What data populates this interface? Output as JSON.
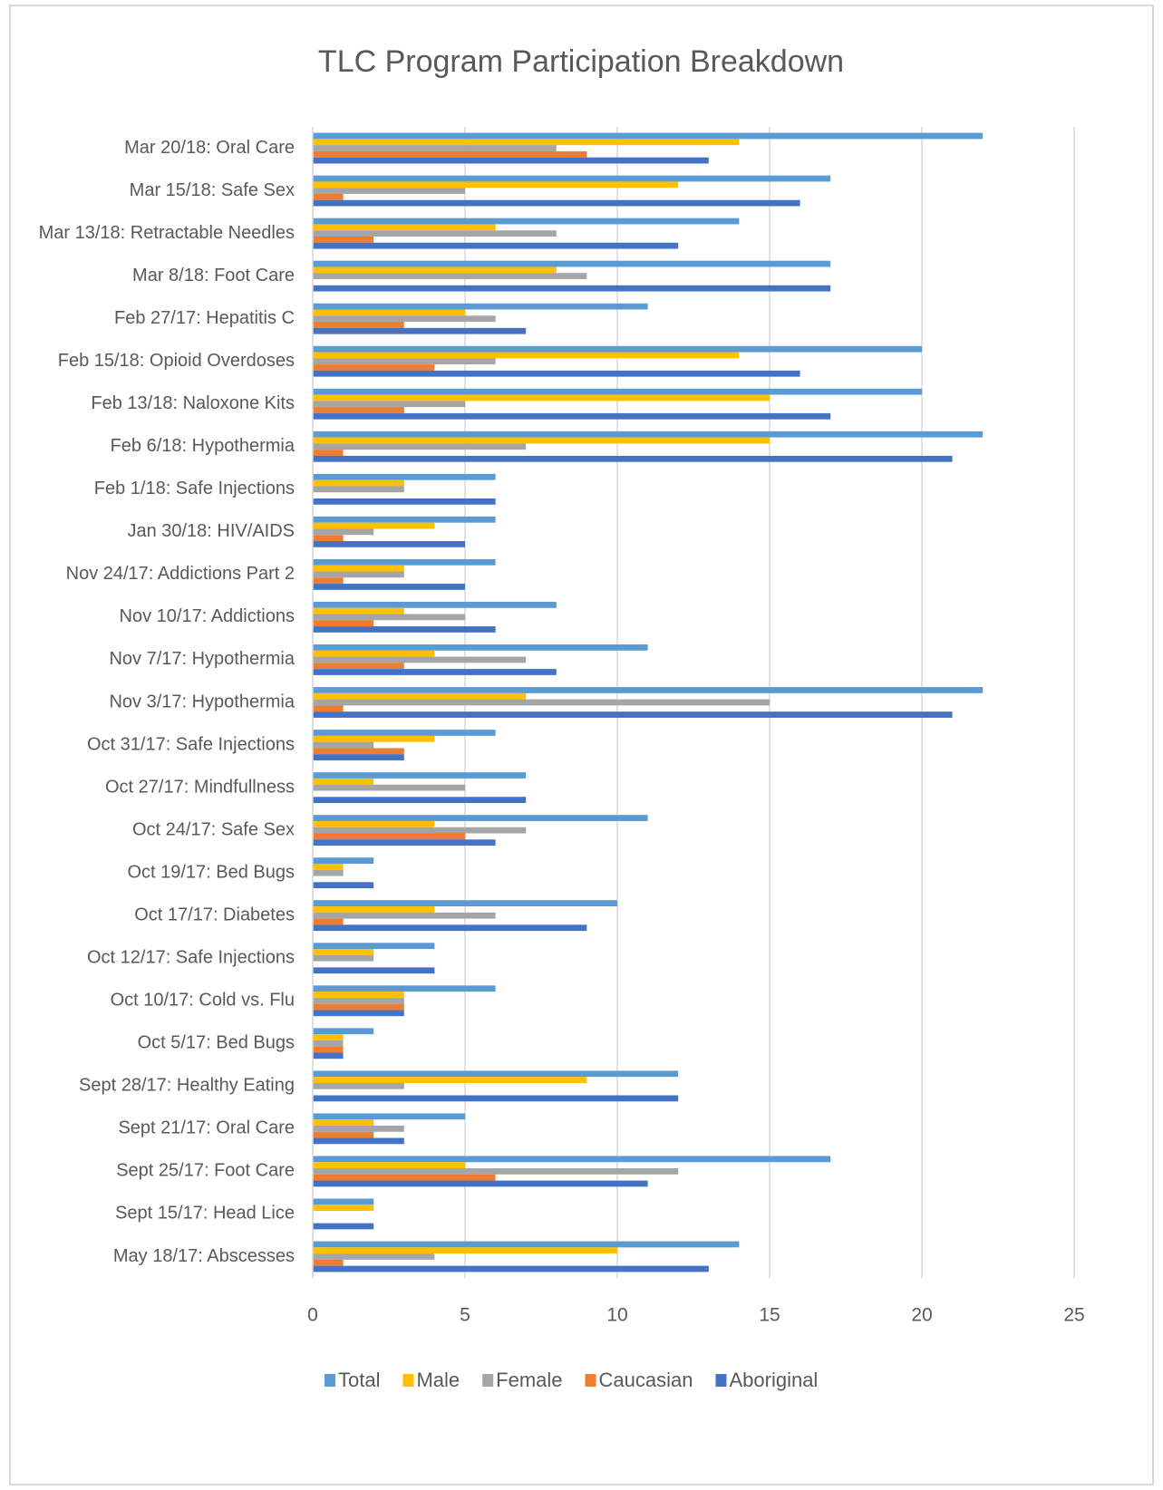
{
  "chart_data": {
    "type": "hbar",
    "title": "TLC Program Participation Breakdown",
    "categories": [
      "Mar 20/18: Oral Care",
      "Mar 15/18: Safe Sex",
      "Mar 13/18: Retractable Needles",
      "Mar 8/18: Foot Care",
      "Feb 27/17: Hepatitis C",
      "Feb 15/18: Opioid Overdoses",
      "Feb 13/18: Naloxone Kits",
      "Feb 6/18: Hypothermia",
      "Feb 1/18: Safe Injections",
      "Jan 30/18: HIV/AIDS",
      "Nov 24/17: Addictions Part 2",
      "Nov 10/17: Addictions",
      "Nov 7/17: Hypothermia",
      "Nov 3/17: Hypothermia",
      "Oct 31/17: Safe Injections",
      "Oct 27/17: Mindfullness",
      "Oct 24/17: Safe Sex",
      "Oct 19/17: Bed Bugs",
      "Oct 17/17: Diabetes",
      "Oct 12/17: Safe Injections",
      "Oct 10/17: Cold vs. Flu",
      "Oct 5/17: Bed Bugs",
      "Sept 28/17: Healthy Eating",
      "Sept 21/17: Oral Care",
      "Sept 25/17: Foot Care",
      "Sept 15/17: Head Lice",
      "May 18/17: Abscesses"
    ],
    "series": [
      {
        "name": "Total",
        "color": "#5b9bd5",
        "values": [
          22,
          17,
          14,
          17,
          11,
          20,
          20,
          22,
          6,
          6,
          6,
          8,
          11,
          22,
          6,
          7,
          11,
          2,
          10,
          4,
          6,
          2,
          12,
          5,
          17,
          2,
          14
        ]
      },
      {
        "name": "Male",
        "color": "#ffc000",
        "values": [
          14,
          12,
          6,
          8,
          5,
          14,
          15,
          15,
          3,
          4,
          3,
          3,
          4,
          7,
          4,
          2,
          4,
          1,
          4,
          2,
          3,
          1,
          9,
          2,
          5,
          2,
          10
        ]
      },
      {
        "name": "Female",
        "color": "#a5a5a5",
        "values": [
          8,
          5,
          8,
          9,
          6,
          6,
          5,
          7,
          3,
          2,
          3,
          5,
          7,
          15,
          2,
          5,
          7,
          1,
          6,
          2,
          3,
          1,
          3,
          3,
          12,
          0,
          4
        ]
      },
      {
        "name": "Caucasian",
        "color": "#ed7d31",
        "values": [
          9,
          1,
          2,
          0,
          3,
          4,
          3,
          1,
          0,
          1,
          1,
          2,
          3,
          1,
          3,
          0,
          5,
          0,
          1,
          0,
          3,
          1,
          0,
          2,
          6,
          0,
          1
        ]
      },
      {
        "name": "Aboriginal",
        "color": "#4472c4",
        "values": [
          13,
          16,
          12,
          17,
          7,
          16,
          17,
          21,
          6,
          5,
          5,
          6,
          8,
          21,
          3,
          7,
          6,
          2,
          9,
          4,
          3,
          1,
          12,
          3,
          11,
          2,
          13
        ]
      }
    ],
    "xlim": [
      0,
      25
    ],
    "xticks": [
      0,
      5,
      10,
      15,
      20,
      25
    ],
    "grid": true,
    "legend": "bottom"
  }
}
